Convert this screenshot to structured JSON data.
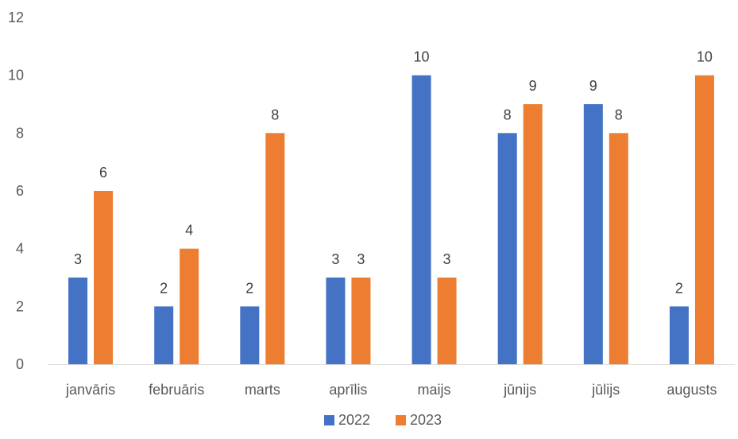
{
  "chart_data": {
    "type": "bar",
    "categories": [
      "janvāris",
      "februāris",
      "marts",
      "aprīlis",
      "maijs",
      "jūnijs",
      "jūlijs",
      "augusts"
    ],
    "series": [
      {
        "name": "2022",
        "values": [
          3,
          2,
          2,
          3,
          10,
          8,
          9,
          2
        ],
        "color": "#4472C4"
      },
      {
        "name": "2023",
        "values": [
          6,
          4,
          8,
          3,
          3,
          9,
          8,
          10
        ],
        "color": "#ED7D31"
      }
    ],
    "ylim": [
      0,
      12
    ],
    "yticks": [
      "0",
      "2",
      "4",
      "6",
      "8",
      "10",
      "12"
    ],
    "grid": false,
    "data_labels": true,
    "legend": "bottom-center",
    "title": "",
    "xlabel": "",
    "ylabel": ""
  }
}
